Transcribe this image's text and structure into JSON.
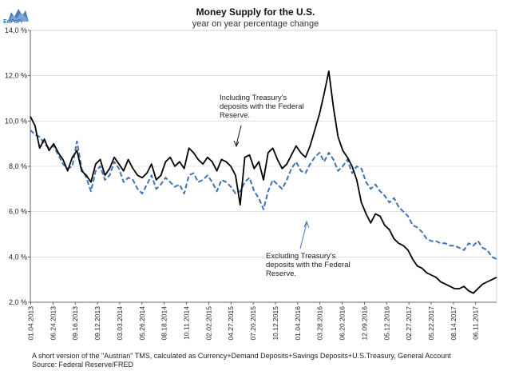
{
  "logo": {
    "text": "EdPoFi"
  },
  "footnotes": {
    "line1": "A short version of the \"Austrian\" TMS,  calculated as Currency+Demand Deposits+Savings Deposits+U.S.Treasury, General Account",
    "line2": "Source: Federal Reserve/FRED"
  },
  "chart_data": {
    "type": "line",
    "title": "Money Supply for the U.S.",
    "subtitle": "year on year percentage change",
    "xlabel": "",
    "ylabel": "",
    "ylim": [
      2.0,
      14.0
    ],
    "y_ticks": [
      "2,0 %",
      "4,0 %",
      "6,0 %",
      "8,0 %",
      "10,0 %",
      "12,0 %",
      "14,0 %"
    ],
    "x_ticks": [
      "01.04.2013",
      "06.24.2013",
      "09.16.2013",
      "09.12.2013",
      "03.03.2014",
      "05.26.2014",
      "08.18.2014",
      "10.11.2014",
      "02.02.2015",
      "04.27.2015",
      "07.20.2015",
      "10.12.2015",
      "01.04.2016",
      "03.28.2016",
      "06.20.2016",
      "12.09.2016",
      "05.12.2016",
      "02.27.2017",
      "05.22.2017",
      "08.14.2017",
      "06.11.2017"
    ],
    "x_range": [
      0,
      100
    ],
    "series": [
      {
        "name": "Including Treasury's deposits with the Federal Reserve.",
        "color": "#000000",
        "style": "solid",
        "x": [
          0,
          1,
          2,
          3,
          4,
          5,
          6,
          7,
          8,
          9,
          10,
          11,
          12,
          13,
          14,
          15,
          16,
          17,
          18,
          19,
          20,
          21,
          22,
          23,
          24,
          25,
          26,
          27,
          28,
          29,
          30,
          31,
          32,
          33,
          34,
          35,
          36,
          37,
          38,
          39,
          40,
          41,
          42,
          43,
          44,
          45,
          46,
          47,
          48,
          49,
          50,
          51,
          52,
          53,
          54,
          55,
          56,
          57,
          58,
          59,
          60,
          61,
          62,
          63,
          64,
          65,
          66,
          67,
          68,
          69,
          70,
          71,
          72,
          73,
          74,
          75,
          76,
          77,
          78,
          79,
          80,
          81,
          82,
          83,
          84,
          85,
          86,
          87,
          88,
          89,
          90,
          91,
          92,
          93,
          94,
          95,
          96,
          97,
          98,
          99,
          100
        ],
        "values": [
          10.2,
          9.8,
          8.8,
          9.2,
          8.7,
          9.0,
          8.6,
          8.3,
          7.8,
          8.4,
          8.7,
          7.8,
          7.6,
          7.3,
          8.1,
          8.3,
          7.6,
          7.9,
          8.4,
          8.1,
          7.8,
          8.3,
          7.9,
          7.6,
          7.5,
          7.7,
          8.1,
          7.4,
          7.6,
          8.2,
          8.4,
          8.0,
          8.2,
          7.9,
          8.8,
          8.6,
          8.3,
          8.1,
          8.4,
          8.2,
          7.8,
          8.3,
          8.2,
          8.0,
          7.6,
          6.3,
          8.4,
          8.5,
          7.9,
          8.2,
          7.4,
          8.6,
          8.8,
          8.3,
          7.9,
          8.1,
          8.5,
          8.9,
          8.6,
          8.4,
          8.9,
          9.6,
          10.3,
          11.2,
          12.2,
          10.6,
          9.3,
          8.7,
          8.4,
          8.0,
          7.4,
          6.4,
          5.9,
          5.5,
          5.9,
          5.8,
          5.4,
          5.2,
          4.8,
          4.6,
          4.5,
          4.3,
          3.9,
          3.6,
          3.5,
          3.3,
          3.2,
          3.1,
          2.9,
          2.8,
          2.7,
          2.6,
          2.6,
          2.7,
          2.5,
          2.4,
          2.6,
          2.8,
          2.9,
          3.0,
          3.1
        ]
      },
      {
        "name": "Excluding Treasury's deposits with the Federal Reserve.",
        "color": "#3f73b6",
        "style": "dashed",
        "x": [
          0,
          1,
          2,
          3,
          4,
          5,
          6,
          7,
          8,
          9,
          10,
          11,
          12,
          13,
          14,
          15,
          16,
          17,
          18,
          19,
          20,
          21,
          22,
          23,
          24,
          25,
          26,
          27,
          28,
          29,
          30,
          31,
          32,
          33,
          34,
          35,
          36,
          37,
          38,
          39,
          40,
          41,
          42,
          43,
          44,
          45,
          46,
          47,
          48,
          49,
          50,
          51,
          52,
          53,
          54,
          55,
          56,
          57,
          58,
          59,
          60,
          61,
          62,
          63,
          64,
          65,
          66,
          67,
          68,
          69,
          70,
          71,
          72,
          73,
          74,
          75,
          76,
          77,
          78,
          79,
          80,
          81,
          82,
          83,
          84,
          85,
          86,
          87,
          88,
          89,
          90,
          91,
          92,
          93,
          94,
          95,
          96,
          97,
          98,
          99,
          100
        ],
        "values": [
          9.6,
          9.4,
          9.3,
          9.0,
          8.8,
          8.9,
          8.5,
          8.1,
          7.9,
          8.0,
          9.1,
          7.9,
          7.5,
          6.9,
          7.8,
          8.0,
          7.4,
          7.6,
          8.2,
          7.9,
          7.3,
          7.5,
          7.4,
          7.0,
          6.8,
          7.2,
          7.6,
          7.0,
          7.2,
          7.5,
          7.3,
          7.1,
          7.2,
          6.8,
          7.6,
          7.7,
          7.3,
          7.4,
          7.6,
          7.3,
          6.9,
          7.4,
          7.3,
          7.1,
          6.8,
          6.9,
          7.3,
          7.5,
          6.9,
          6.6,
          6.1,
          6.9,
          7.4,
          7.2,
          7.0,
          7.4,
          7.9,
          8.2,
          7.8,
          7.7,
          8.1,
          8.4,
          8.6,
          8.2,
          8.6,
          8.3,
          7.8,
          8.0,
          8.3,
          7.7,
          8.0,
          7.9,
          7.3,
          7.0,
          7.2,
          6.9,
          6.7,
          6.4,
          6.6,
          6.2,
          6.0,
          5.8,
          5.4,
          5.3,
          5.1,
          4.8,
          4.7,
          4.7,
          4.6,
          4.6,
          4.5,
          4.5,
          4.4,
          4.3,
          4.6,
          4.5,
          4.7,
          4.4,
          4.3,
          4.0,
          3.9
        ]
      }
    ],
    "annotations": [
      {
        "lines": [
          "Including Treasury's",
          "deposits with the Federal",
          "Reserve."
        ]
      },
      {
        "lines": [
          "Excluding Treasury's",
          "deposits with the Federal",
          "Reserve."
        ]
      }
    ]
  }
}
